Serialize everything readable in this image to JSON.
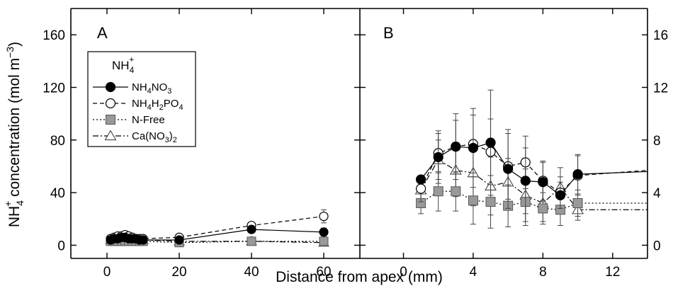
{
  "chart_data": [
    {
      "panel": "A",
      "type": "line",
      "xlabel": "Distance from apex (mm)",
      "ylabel": "NH4+ concentration (mol m-3)",
      "xlim": [
        -10,
        70
      ],
      "ylim": [
        -10,
        180
      ],
      "xticks": [
        0,
        20,
        40,
        60
      ],
      "yticks": [
        0,
        40,
        80,
        120,
        160
      ],
      "legend": {
        "title_main": "NH",
        "title_sub": "4",
        "title_sup": "+",
        "entries": [
          {
            "parts": [
              [
                "NH",
                ""
              ],
              [
                "4",
                "sub"
              ],
              [
                "NO",
                ""
              ],
              [
                "3",
                "sub"
              ]
            ]
          },
          {
            "parts": [
              [
                "NH",
                ""
              ],
              [
                "4",
                "sub"
              ],
              [
                "H",
                ""
              ],
              [
                "2",
                "sub"
              ],
              [
                "PO",
                ""
              ],
              [
                "4",
                "sub"
              ]
            ]
          },
          {
            "parts": [
              [
                "N-Free",
                ""
              ]
            ]
          },
          {
            "parts": [
              [
                "Ca(NO",
                ""
              ],
              [
                "3",
                "sub"
              ],
              [
                ")",
                ""
              ],
              [
                "2",
                "sub"
              ]
            ]
          }
        ],
        "placement": "upper-left"
      },
      "series": [
        {
          "name": "NH4NO3",
          "marker": "circle-filled",
          "line": "solid",
          "x": [
            1,
            2,
            3,
            4,
            5,
            6,
            7,
            8,
            9,
            10,
            20,
            40,
            60
          ],
          "y": [
            4,
            5,
            5,
            6,
            6,
            5,
            5,
            5,
            4,
            4,
            4,
            12,
            10
          ],
          "err": [
            0,
            0,
            0,
            0,
            0,
            0,
            0,
            0,
            0,
            0,
            0,
            2,
            3
          ]
        },
        {
          "name": "NH4H2PO4",
          "marker": "circle-open",
          "line": "dashed",
          "x": [
            1,
            2,
            3,
            4,
            5,
            6,
            7,
            8,
            9,
            10,
            20,
            40,
            60
          ],
          "y": [
            5,
            6,
            7,
            7,
            8,
            7,
            6,
            5,
            5,
            5,
            6,
            15,
            22
          ],
          "err": [
            0,
            0,
            0,
            0,
            0,
            0,
            0,
            0,
            0,
            0,
            0,
            2,
            5
          ]
        },
        {
          "name": "N-Free",
          "marker": "square-filled",
          "line": "dotted",
          "x": [
            1,
            2,
            3,
            4,
            5,
            6,
            7,
            8,
            9,
            10,
            20,
            40,
            60
          ],
          "y": [
            3,
            3,
            3,
            3,
            3,
            3,
            3,
            3,
            3,
            3,
            2,
            3,
            3
          ],
          "err": [
            0,
            0,
            0,
            0,
            0,
            0,
            0,
            0,
            0,
            0,
            0,
            0,
            0
          ]
        },
        {
          "name": "Ca(NO3)2",
          "marker": "triangle-open",
          "line": "dashdot",
          "x": [
            1,
            2,
            3,
            4,
            5,
            6,
            7,
            8,
            9,
            10,
            20,
            40,
            60
          ],
          "y": [
            4,
            5,
            6,
            6,
            6,
            5,
            5,
            4,
            4,
            4,
            3,
            3,
            2
          ],
          "err": [
            0,
            0,
            0,
            0,
            0,
            0,
            0,
            0,
            0,
            0,
            0,
            0,
            0
          ]
        }
      ]
    },
    {
      "panel": "B",
      "type": "line",
      "xlim": [
        -2.5,
        14
      ],
      "ylim": [
        -10,
        180
      ],
      "xticks": [
        0,
        4,
        8,
        12
      ],
      "yticks_right": [
        0,
        40,
        80,
        120,
        160
      ],
      "yticklabels_right": [
        "0",
        "4",
        "8",
        "12",
        "16"
      ],
      "series": [
        {
          "name": "NH4NO3",
          "marker": "circle-filled",
          "line": "solid",
          "x": [
            1,
            2,
            3,
            4,
            5,
            6,
            7,
            8,
            9,
            10
          ],
          "y": [
            50,
            67,
            75,
            74,
            78,
            58,
            49,
            48,
            38,
            54
          ],
          "err": [
            0,
            20,
            25,
            30,
            40,
            30,
            25,
            15,
            10,
            15
          ],
          "tail": [
            10,
            14,
            56
          ]
        },
        {
          "name": "NH4H2PO4",
          "marker": "circle-open",
          "line": "dashed",
          "x": [
            1,
            2,
            3,
            4,
            5,
            6,
            7,
            8,
            9,
            10
          ],
          "y": [
            43,
            70,
            75,
            77,
            71,
            60,
            63,
            49,
            40,
            53
          ],
          "err": [
            10,
            15,
            20,
            22,
            25,
            25,
            20,
            15,
            12,
            15
          ],
          "tail": [
            10,
            14,
            57
          ]
        },
        {
          "name": "N-Free",
          "marker": "square-filled",
          "line": "dotted",
          "x": [
            1,
            2,
            3,
            4,
            5,
            6,
            7,
            8,
            9,
            10
          ],
          "y": [
            32,
            41,
            41,
            34,
            33,
            30,
            33,
            28,
            27,
            32
          ],
          "err": [
            8,
            15,
            15,
            18,
            20,
            16,
            18,
            12,
            12,
            10
          ],
          "tail": [
            10,
            14,
            32
          ]
        },
        {
          "name": "Ca(NO3)2",
          "marker": "triangle-open",
          "line": "dashdot",
          "x": [
            1,
            2,
            3,
            4,
            5,
            6,
            7,
            8,
            9,
            10
          ],
          "y": [
            42,
            65,
            57,
            55,
            45,
            48,
            38,
            32,
            44,
            27
          ],
          "err": [
            10,
            15,
            20,
            25,
            22,
            18,
            20,
            14,
            15,
            8
          ],
          "tail": [
            10,
            14,
            27
          ]
        }
      ]
    }
  ]
}
